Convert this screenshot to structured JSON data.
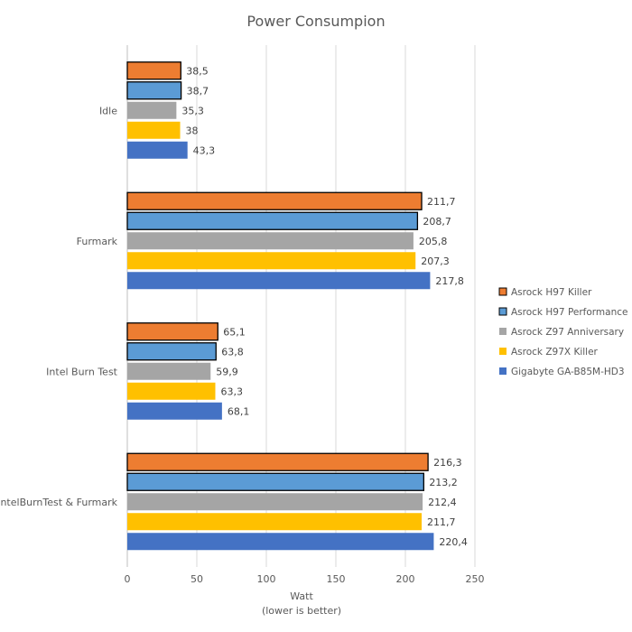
{
  "chart_data": {
    "type": "bar",
    "orientation": "horizontal",
    "title": "Power Consumpion",
    "xlabel": "Watt",
    "xlabel_sub": "(lower is better)",
    "xlim": [
      0,
      250
    ],
    "xticks": [
      0,
      50,
      100,
      150,
      200,
      250
    ],
    "grid": true,
    "legend_position": "right",
    "categories": [
      "Idle",
      "Furmark",
      "Intel Burn Test",
      "IntelBurnTest & Furmark"
    ],
    "series": [
      {
        "name": "Asrock H97 Killer",
        "color": "#ED7D31",
        "outlined": true,
        "values": [
          38.5,
          211.7,
          65.1,
          216.3
        ],
        "labels": [
          "38,5",
          "211,7",
          "65,1",
          "216,3"
        ]
      },
      {
        "name": "Asrock H97 Performance",
        "color": "#5B9BD5",
        "outlined": true,
        "values": [
          38.7,
          208.7,
          63.8,
          213.2
        ],
        "labels": [
          "38,7",
          "208,7",
          "63,8",
          "213,2"
        ]
      },
      {
        "name": "Asrock Z97 Anniversary",
        "color": "#A5A5A5",
        "outlined": false,
        "values": [
          35.3,
          205.8,
          59.9,
          212.4
        ],
        "labels": [
          "35,3",
          "205,8",
          "59,9",
          "212,4"
        ]
      },
      {
        "name": "Asrock Z97X Killer",
        "color": "#FFC000",
        "outlined": false,
        "values": [
          38,
          207.3,
          63.3,
          211.7
        ],
        "labels": [
          "38",
          "207,3",
          "63,3",
          "211,7"
        ]
      },
      {
        "name": "Gigabyte GA-B85M-HD3",
        "color": "#4472C4",
        "outlined": false,
        "values": [
          43.3,
          217.8,
          68.1,
          220.4
        ],
        "labels": [
          "43,3",
          "217,8",
          "68,1",
          "220,4"
        ]
      }
    ]
  }
}
